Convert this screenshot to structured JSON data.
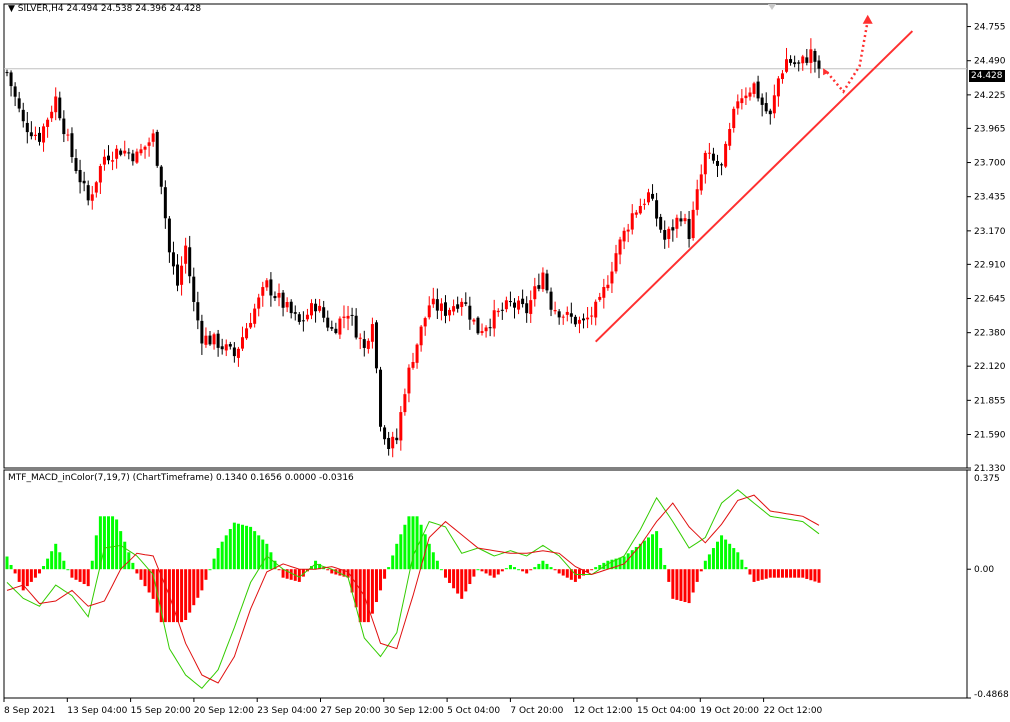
{
  "price_header": {
    "symbol": "SILVER,H4",
    "open": "24.494",
    "high": "24.538",
    "low": "24.396",
    "close": "24.428"
  },
  "indicator_header": {
    "name": "MTF_MACD_inColor(7,19,7) (ChartTimeframe)",
    "values": "0.1340 0.1656 0.0000 -0.0316"
  },
  "current_price": "24.428",
  "colors": {
    "background": "#ffffff",
    "bull_candle": "#ff0000",
    "bear_candle": "#000000",
    "histogram_up": "#00ff00",
    "histogram_down": "#ff0000",
    "macd_line": "#33cc00",
    "signal_line": "#e01010",
    "trendline": "#ff3030",
    "arrow": "#ff3030",
    "price_line": "#c0c0c0"
  },
  "chart_data": [
    {
      "type": "candlestick",
      "title": "SILVER,H4",
      "y_ticks": [
        "24.755",
        "24.490",
        "24.225",
        "23.965",
        "23.700",
        "23.435",
        "23.170",
        "22.910",
        "22.645",
        "22.380",
        "22.120",
        "21.855",
        "21.590",
        "21.330"
      ],
      "ylim": [
        21.33,
        24.93
      ],
      "x_ticks": [
        "8 Sep 2021",
        "13 Sep 04:00",
        "15 Sep 20:00",
        "20 Sep 12:00",
        "23 Sep 04:00",
        "27 Sep 20:00",
        "30 Sep 12:00",
        "5 Oct 04:00",
        "7 Oct 20:00",
        "12 Oct 12:00",
        "15 Oct 04:00",
        "19 Oct 20:00",
        "22 Oct 12:00"
      ],
      "anchors": [
        [
          0,
          24.4
        ],
        [
          4,
          24.0
        ],
        [
          8,
          23.9
        ],
        [
          12,
          24.2
        ],
        [
          16,
          23.75
        ],
        [
          20,
          23.4
        ],
        [
          24,
          23.75
        ],
        [
          28,
          23.8
        ],
        [
          32,
          23.75
        ],
        [
          36,
          23.9
        ],
        [
          38,
          23.55
        ],
        [
          40,
          23.0
        ],
        [
          42,
          22.75
        ],
        [
          44,
          23.05
        ],
        [
          46,
          22.6
        ],
        [
          48,
          22.35
        ],
        [
          52,
          22.3
        ],
        [
          56,
          22.2
        ],
        [
          60,
          22.5
        ],
        [
          64,
          22.75
        ],
        [
          68,
          22.6
        ],
        [
          72,
          22.45
        ],
        [
          76,
          22.6
        ],
        [
          80,
          22.4
        ],
        [
          84,
          22.55
        ],
        [
          88,
          22.25
        ],
        [
          90,
          22.5
        ],
        [
          92,
          21.7
        ],
        [
          94,
          21.5
        ],
        [
          96,
          21.55
        ],
        [
          98,
          21.95
        ],
        [
          100,
          22.2
        ],
        [
          104,
          22.6
        ],
        [
          108,
          22.55
        ],
        [
          112,
          22.65
        ],
        [
          116,
          22.4
        ],
        [
          120,
          22.5
        ],
        [
          124,
          22.6
        ],
        [
          128,
          22.55
        ],
        [
          132,
          22.85
        ],
        [
          134,
          22.6
        ],
        [
          138,
          22.5
        ],
        [
          142,
          22.45
        ],
        [
          146,
          22.6
        ],
        [
          150,
          23.0
        ],
        [
          154,
          23.3
        ],
        [
          158,
          23.45
        ],
        [
          162,
          23.1
        ],
        [
          166,
          23.3
        ],
        [
          168,
          23.15
        ],
        [
          172,
          23.75
        ],
        [
          176,
          23.65
        ],
        [
          180,
          24.2
        ],
        [
          184,
          24.3
        ],
        [
          186,
          24.15
        ],
        [
          188,
          24.05
        ],
        [
          190,
          24.35
        ],
        [
          192,
          24.5
        ],
        [
          195,
          24.45
        ],
        [
          198,
          24.55
        ],
        [
          200,
          24.43
        ]
      ],
      "last_price": 24.428,
      "trendline": {
        "from": [
          145,
          22.31
        ],
        "to": [
          223,
          24.72
        ]
      },
      "projection_arrow": {
        "path": [
          [
            202,
            24.4
          ],
          [
            206,
            24.25
          ],
          [
            210,
            24.45
          ],
          [
            212,
            24.8
          ]
        ]
      }
    },
    {
      "type": "macd_histogram",
      "title": "MTF_MACD_inColor(7,19,7) (ChartTimeframe)",
      "y_ticks": [
        "0.375",
        "0.00",
        "-0.4868"
      ],
      "ylim": [
        -0.4868,
        0.375
      ],
      "macd_anchors": [
        [
          0,
          -0.05
        ],
        [
          4,
          -0.11
        ],
        [
          8,
          -0.14
        ],
        [
          12,
          -0.06
        ],
        [
          16,
          -0.1
        ],
        [
          20,
          -0.18
        ],
        [
          24,
          0.08
        ],
        [
          28,
          0.09
        ],
        [
          32,
          0.05
        ],
        [
          36,
          -0.02
        ],
        [
          40,
          -0.3
        ],
        [
          44,
          -0.4
        ],
        [
          48,
          -0.45
        ],
        [
          52,
          -0.38
        ],
        [
          56,
          -0.22
        ],
        [
          60,
          -0.05
        ],
        [
          64,
          0.05
        ],
        [
          68,
          0.0
        ],
        [
          72,
          -0.03
        ],
        [
          76,
          0.02
        ],
        [
          80,
          0.0
        ],
        [
          84,
          -0.03
        ],
        [
          88,
          -0.26
        ],
        [
          92,
          -0.33
        ],
        [
          96,
          -0.24
        ],
        [
          100,
          0.05
        ],
        [
          104,
          0.18
        ],
        [
          108,
          0.16
        ],
        [
          112,
          0.06
        ],
        [
          116,
          0.08
        ],
        [
          120,
          0.05
        ],
        [
          124,
          0.07
        ],
        [
          128,
          0.05
        ],
        [
          132,
          0.09
        ],
        [
          136,
          0.05
        ],
        [
          140,
          -0.02
        ],
        [
          144,
          -0.02
        ],
        [
          148,
          0.02
        ],
        [
          152,
          0.05
        ],
        [
          156,
          0.15
        ],
        [
          160,
          0.27
        ],
        [
          164,
          0.18
        ],
        [
          168,
          0.08
        ],
        [
          172,
          0.12
        ],
        [
          176,
          0.25
        ],
        [
          180,
          0.3
        ],
        [
          184,
          0.25
        ],
        [
          188,
          0.2
        ],
        [
          192,
          0.19
        ],
        [
          196,
          0.18
        ],
        [
          200,
          0.134
        ]
      ],
      "signal_anchors": [
        [
          0,
          -0.08
        ],
        [
          4,
          -0.06
        ],
        [
          8,
          -0.13
        ],
        [
          12,
          -0.12
        ],
        [
          16,
          -0.08
        ],
        [
          20,
          -0.14
        ],
        [
          24,
          -0.12
        ],
        [
          28,
          0.0
        ],
        [
          32,
          0.06
        ],
        [
          36,
          0.05
        ],
        [
          40,
          -0.1
        ],
        [
          44,
          -0.28
        ],
        [
          48,
          -0.4
        ],
        [
          52,
          -0.43
        ],
        [
          56,
          -0.33
        ],
        [
          60,
          -0.15
        ],
        [
          64,
          -0.01
        ],
        [
          68,
          0.02
        ],
        [
          72,
          0.0
        ],
        [
          76,
          0.0
        ],
        [
          80,
          0.01
        ],
        [
          84,
          -0.01
        ],
        [
          88,
          -0.1
        ],
        [
          92,
          -0.28
        ],
        [
          96,
          -0.3
        ],
        [
          100,
          -0.1
        ],
        [
          104,
          0.12
        ],
        [
          108,
          0.18
        ],
        [
          112,
          0.13
        ],
        [
          116,
          0.08
        ],
        [
          120,
          0.07
        ],
        [
          124,
          0.06
        ],
        [
          128,
          0.06
        ],
        [
          132,
          0.07
        ],
        [
          136,
          0.06
        ],
        [
          140,
          0.01
        ],
        [
          144,
          -0.02
        ],
        [
          148,
          0.0
        ],
        [
          152,
          0.02
        ],
        [
          156,
          0.09
        ],
        [
          160,
          0.18
        ],
        [
          164,
          0.25
        ],
        [
          168,
          0.16
        ],
        [
          172,
          0.1
        ],
        [
          176,
          0.17
        ],
        [
          180,
          0.26
        ],
        [
          184,
          0.28
        ],
        [
          188,
          0.22
        ],
        [
          192,
          0.21
        ],
        [
          196,
          0.2
        ],
        [
          200,
          0.166
        ]
      ]
    }
  ]
}
